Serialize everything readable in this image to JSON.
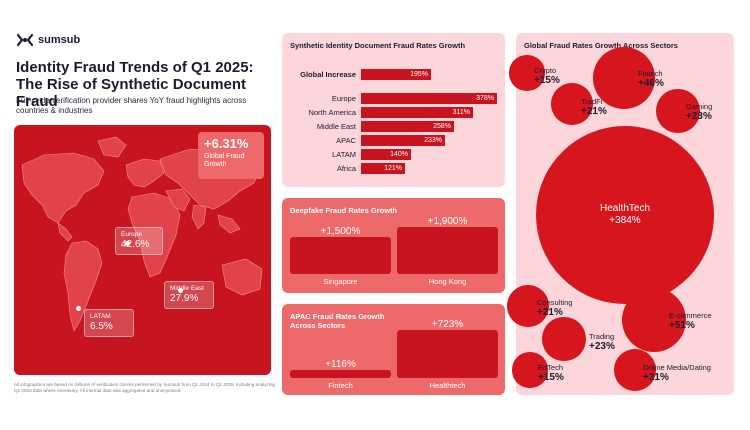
{
  "brand": {
    "name": "sumsub"
  },
  "header": {
    "title": "Identity Fraud Trends of Q1 2025: The Rise of Synthetic Document Fraud",
    "subtitle": "Full-cycle verification provider shares YoY fraud highlights across countries & industries"
  },
  "map": {
    "global": {
      "value": "+6.31%",
      "label": "Global Fraud Growth"
    },
    "regions": [
      {
        "label": "Europe",
        "value": "42.6%"
      },
      {
        "label": "Middle East",
        "value": "27.9%"
      },
      {
        "label": "LATAM",
        "value": "6.5%"
      }
    ]
  },
  "footnote": "All infographics are based on millions of verification checks performed by Sumsub from Q1 2024 to Q1 2025, including analyzing Q1 2023 data where necessary. All internal data was aggregated and anonymized.",
  "colors": {
    "brand_red": "#c8141e",
    "light_pink": "#fdd6dc",
    "medium_red": "#ee6a6a",
    "bubble_red": "#d6151f"
  },
  "chart_data": [
    {
      "type": "bar",
      "title": "Synthetic Identity Document Fraud Rates Growth",
      "orientation": "horizontal",
      "categories": [
        "Global Increase",
        "Europe",
        "North America",
        "Middle East",
        "APAC",
        "LATAM",
        "Africa"
      ],
      "values": [
        195,
        378,
        311,
        258,
        233,
        140,
        121
      ],
      "labels": [
        "195%",
        "378%",
        "311%",
        "258%",
        "233%",
        "140%",
        "121%"
      ],
      "xlim": [
        0,
        378
      ]
    },
    {
      "type": "bar",
      "title": "Deepfake Fraud Rates Growth",
      "categories": [
        "Singapore",
        "Hong Kong"
      ],
      "values": [
        1500,
        1900
      ],
      "labels": [
        "+1,500%",
        "+1,900%"
      ],
      "ylim": [
        0,
        1900
      ]
    },
    {
      "type": "bar",
      "title": "APAC Fraud Rates Growth Across Sectors",
      "categories": [
        "Fintech",
        "Healthtech"
      ],
      "values": [
        116,
        723
      ],
      "labels": [
        "+116%",
        "+723%"
      ],
      "ylim": [
        0,
        723
      ]
    },
    {
      "type": "scatter",
      "title": "Global Fraud Rates Growth Across Sectors",
      "encoding": "bubble size = growth",
      "points": [
        {
          "name": "Crypto",
          "value": 15,
          "label": "+15%"
        },
        {
          "name": "Fintech",
          "value": 46,
          "label": "+46%"
        },
        {
          "name": "TradFi",
          "value": 21,
          "label": "+21%"
        },
        {
          "name": "Gaming",
          "value": 23,
          "label": "+23%"
        },
        {
          "name": "HealthTech",
          "value": 384,
          "label": "+384%"
        },
        {
          "name": "Consulting",
          "value": 21,
          "label": "+21%"
        },
        {
          "name": "E-commerce",
          "value": 51,
          "label": "+51%"
        },
        {
          "name": "Trading",
          "value": 23,
          "label": "+23%"
        },
        {
          "name": "EdTech",
          "value": 15,
          "label": "+15%"
        },
        {
          "name": "Online Media/Dating",
          "value": 21,
          "label": "+21%"
        }
      ]
    }
  ]
}
